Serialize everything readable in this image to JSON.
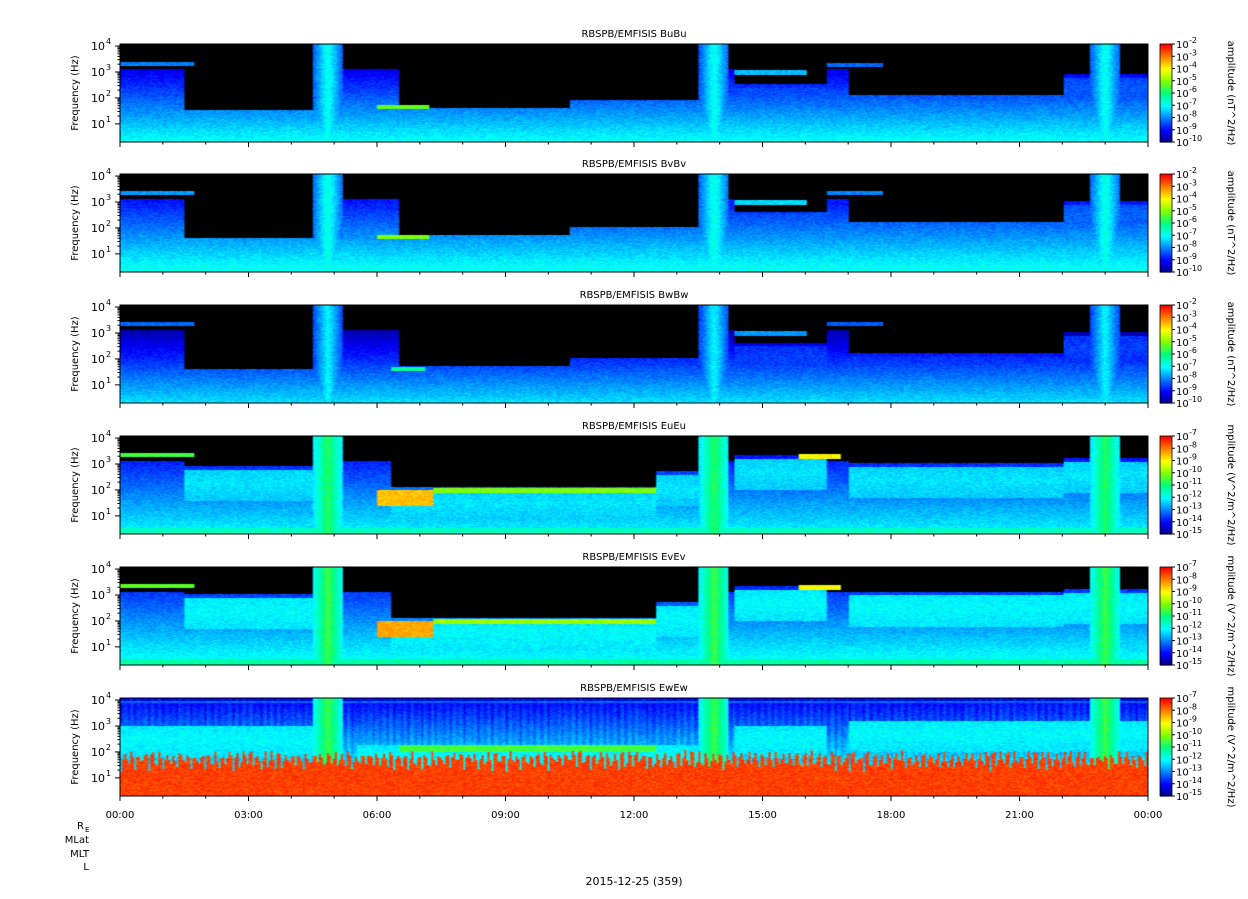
{
  "chart_data": {
    "type": "heatmap",
    "x_tick_labels": [
      "00:00",
      "03:00",
      "06:00",
      "09:00",
      "12:00",
      "15:00",
      "18:00",
      "21:00",
      "00:00"
    ],
    "y_axis_label": "Frequency (Hz)",
    "y_tick_labels": [
      "10",
      "10",
      "10",
      "10"
    ],
    "y_tick_exponents": [
      "1",
      "2",
      "3",
      "4"
    ],
    "ylim_hz": [
      2,
      12000
    ],
    "ylog": true,
    "xlim_hours": [
      0,
      24
    ],
    "date_label": "2015-12-25 (359)",
    "ephemeris_labels": [
      "R",
      "MLat",
      "MLT",
      "L"
    ],
    "ephemeris_r_subscript": "E",
    "colormap": [
      "#000080",
      "#0000ff",
      "#0080ff",
      "#00ffff",
      "#00ff80",
      "#80ff00",
      "#ffff00",
      "#ff8000",
      "#ff0000"
    ],
    "panels": [
      {
        "title": "RBSPB/EMFISIS  BuBu",
        "colorbar_label": "amplitude (nT^2/Hz)",
        "colorbar_ticks": [
          "-2",
          "-3",
          "-4",
          "-5",
          "-6",
          "-7",
          "-8",
          "-9",
          "-10"
        ],
        "base_log": -8.2,
        "top_log": -6.9,
        "chorus_log": -8.3,
        "chorus_segments": [
          [
            1.5,
            5.2,
            1.4
          ],
          [
            6.5,
            10.5,
            1.5
          ],
          [
            10.5,
            14.2,
            1.8
          ],
          [
            14.3,
            16.5,
            2.4
          ],
          [
            17,
            22,
            2.0
          ],
          [
            22,
            24,
            2.8
          ]
        ],
        "bands": [
          [
            6.0,
            7.2,
            1.6,
            1.75,
            -5.2
          ],
          [
            14.3,
            16.0,
            2.9,
            3.1,
            -7.5
          ],
          [
            0.0,
            1.7,
            3.25,
            3.4,
            -8.0
          ],
          [
            16.5,
            17.8,
            3.2,
            3.35,
            -8.2
          ]
        ],
        "spikes": [
          4.83,
          13.85,
          22.98
        ],
        "profile": "B"
      },
      {
        "title": "RBSPB/EMFISIS  BvBv",
        "colorbar_label": "amplitude (nT^2/Hz)",
        "colorbar_ticks": [
          "-2",
          "-3",
          "-4",
          "-5",
          "-6",
          "-7",
          "-8",
          "-9",
          "-10"
        ],
        "base_log": -8.0,
        "top_log": -6.8,
        "chorus_log": -8.2,
        "chorus_segments": [
          [
            1.5,
            5.2,
            1.5
          ],
          [
            6.5,
            10.5,
            1.6
          ],
          [
            10.5,
            14.2,
            1.9
          ],
          [
            14.3,
            16.5,
            2.5
          ],
          [
            17,
            22,
            2.1
          ],
          [
            22,
            24,
            2.9
          ]
        ],
        "bands": [
          [
            6.0,
            7.2,
            1.6,
            1.75,
            -5.0
          ],
          [
            14.3,
            16.0,
            2.9,
            3.1,
            -7.3
          ],
          [
            0.0,
            1.7,
            3.3,
            3.45,
            -7.8
          ],
          [
            16.5,
            17.8,
            3.3,
            3.45,
            -8.0
          ]
        ],
        "spikes": [
          4.83,
          13.85,
          22.98
        ],
        "profile": "B"
      },
      {
        "title": "RBSPB/EMFISIS  BwBw",
        "colorbar_label": "amplitude (nT^2/Hz)",
        "colorbar_ticks": [
          "-2",
          "-3",
          "-4",
          "-5",
          "-6",
          "-7",
          "-8",
          "-9",
          "-10"
        ],
        "base_log": -8.6,
        "top_log": -7.2,
        "chorus_log": -8.5,
        "chorus_segments": [
          [
            1.5,
            5.2,
            1.5
          ],
          [
            6.5,
            10.5,
            1.6
          ],
          [
            10.5,
            14.2,
            1.9
          ],
          [
            14.3,
            16.5,
            2.5
          ],
          [
            17,
            22,
            2.1
          ],
          [
            22,
            24,
            2.9
          ]
        ],
        "bands": [
          [
            6.3,
            7.1,
            1.55,
            1.7,
            -6.2
          ],
          [
            14.3,
            16.0,
            2.9,
            3.1,
            -7.8
          ],
          [
            0.0,
            1.7,
            3.3,
            3.45,
            -8.2
          ],
          [
            16.5,
            17.8,
            3.3,
            3.45,
            -8.3
          ]
        ],
        "spikes": [
          4.83,
          13.85,
          22.98
        ],
        "profile": "B"
      },
      {
        "title": "RBSPB/EMFISIS  EuEu",
        "colorbar_label": "mplitude (V^2/m^2/Hz)",
        "colorbar_ticks": [
          "-7",
          "-8",
          "-9",
          "-10",
          "-11",
          "-12",
          "-13",
          "-14",
          "-15"
        ],
        "base_log": -13.0,
        "top_log": -12.0,
        "chorus_log": -12.2,
        "chorus_segments": [
          [
            1.5,
            5.2,
            2.8
          ],
          [
            6.3,
            12.5,
            2.0
          ],
          [
            12.5,
            14.2,
            2.6
          ],
          [
            14.3,
            16.5,
            3.2
          ],
          [
            17,
            22,
            2.9
          ],
          [
            22,
            24,
            3.1
          ]
        ],
        "bands": [
          [
            6.0,
            7.3,
            1.4,
            2.0,
            -8.5
          ],
          [
            7.3,
            12.5,
            1.9,
            2.1,
            -10.0
          ],
          [
            15.8,
            16.8,
            3.2,
            3.4,
            -9.0
          ],
          [
            0,
            1.7,
            3.3,
            3.45,
            -10.5
          ]
        ],
        "spikes": [
          4.83,
          13.85,
          22.98
        ],
        "profile": "E"
      },
      {
        "title": "RBSPB/EMFISIS  EvEv",
        "colorbar_label": "mplitude (V^2/m^2/Hz)",
        "colorbar_ticks": [
          "-7",
          "-8",
          "-9",
          "-10",
          "-11",
          "-12",
          "-13",
          "-14",
          "-15"
        ],
        "base_log": -12.8,
        "top_log": -11.8,
        "chorus_log": -12.0,
        "chorus_segments": [
          [
            1.5,
            5.2,
            2.9
          ],
          [
            6.3,
            12.5,
            2.0
          ],
          [
            12.5,
            14.2,
            2.6
          ],
          [
            14.3,
            16.5,
            3.2
          ],
          [
            17,
            22,
            3.0
          ],
          [
            22,
            24,
            3.1
          ]
        ],
        "bands": [
          [
            6.0,
            7.3,
            1.4,
            2.0,
            -8.3
          ],
          [
            7.3,
            12.5,
            1.9,
            2.1,
            -9.8
          ],
          [
            15.8,
            16.8,
            3.2,
            3.4,
            -9.0
          ],
          [
            0,
            1.7,
            3.3,
            3.45,
            -10.3
          ]
        ],
        "spikes": [
          4.83,
          13.85,
          22.98
        ],
        "profile": "E"
      },
      {
        "title": "RBSPB/EMFISIS  EwEw",
        "colorbar_label": "mplitude (V^2/m^2/Hz)",
        "colorbar_ticks": [
          "-7",
          "-8",
          "-9",
          "-10",
          "-11",
          "-12",
          "-13",
          "-14",
          "-15"
        ],
        "base_log": -12.2,
        "top_log": -8.0,
        "chorus_log": -12.0,
        "chorus_segments": [
          [
            0,
            5.0,
            3.0
          ],
          [
            5.5,
            14.0,
            2.3
          ],
          [
            14.3,
            16.5,
            3.0
          ],
          [
            17,
            22,
            3.2
          ],
          [
            22,
            24,
            3.2
          ]
        ],
        "bands": [
          [
            6.5,
            12.5,
            2.0,
            2.3,
            -10.5
          ],
          [
            0,
            24,
            3.9,
            4.0,
            -13.2
          ]
        ],
        "spikes": [
          4.83,
          13.85,
          22.98
        ],
        "profile": "W"
      }
    ]
  }
}
